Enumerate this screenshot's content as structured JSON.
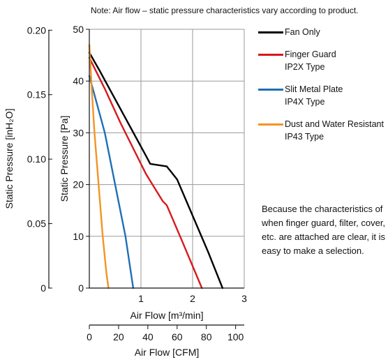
{
  "note": "Note: Air flow – static pressure characteristics vary according to product.",
  "side_note": "Because the characteristics of when finger guard, filter, cover, etc. are attached are clear, it is easy to make a selection.",
  "legend": [
    {
      "line1": "Fan Only",
      "line2": "",
      "color": "#000000"
    },
    {
      "line1": "Finger Guard",
      "line2": "IP2X Type",
      "color": "#d7191c"
    },
    {
      "line1": "Slit Metal Plate",
      "line2": "IP4X Type",
      "color": "#1f6fb5"
    },
    {
      "line1": "Dust and Water Resistant",
      "line2": "IP43 Type",
      "color": "#f39422"
    }
  ],
  "chart_data": {
    "type": "line",
    "xlabel": "Air Flow [m³/min]",
    "x2label": "Air Flow [CFM]",
    "ylabel": "Static Pressure [Pa]",
    "y2label": "Static Pressure [inH₂O]",
    "xlim": [
      0,
      3
    ],
    "ylim": [
      0,
      50
    ],
    "x_ticks": [
      "1",
      "2",
      "3"
    ],
    "y_ticks": [
      "0",
      "10",
      "20",
      "30",
      "40",
      "50"
    ],
    "cfm_ticks": [
      "0",
      "20",
      "40",
      "60",
      "80",
      "100"
    ],
    "cfm_lim": [
      0,
      105.9
    ],
    "inh2o_ticks": [
      "0",
      "0.05",
      "0.10",
      "0.15",
      "0.20"
    ],
    "inh2o_lim": [
      0,
      0.2007
    ],
    "grid": true,
    "legend_position": "right",
    "series": [
      {
        "name": "Fan Only",
        "color": "#000000",
        "x": [
          0,
          0.2,
          0.5,
          0.8,
          1.1,
          1.18,
          1.5,
          1.7,
          2.0,
          2.3,
          2.58
        ],
        "y": [
          45.5,
          42,
          36.5,
          31,
          25.5,
          24,
          23.5,
          21,
          14,
          7,
          0
        ]
      },
      {
        "name": "Finger Guard IP2X Type",
        "color": "#d7191c",
        "x": [
          0,
          0.3,
          0.6,
          0.9,
          1.1,
          1.42,
          1.5,
          1.8,
          2.18
        ],
        "y": [
          44.5,
          38.5,
          32,
          26,
          22,
          16.8,
          16,
          9,
          0
        ]
      },
      {
        "name": "Slit Metal Plate IP4X Type",
        "color": "#1f6fb5",
        "x": [
          0,
          0.15,
          0.3,
          0.5,
          0.7,
          0.85
        ],
        "y": [
          41,
          35.5,
          30,
          20,
          10,
          0
        ]
      },
      {
        "name": "Dust and Water Resistant IP43 Type",
        "color": "#f39422",
        "x": [
          0,
          0.05,
          0.1,
          0.18,
          0.26,
          0.33,
          0.37
        ],
        "y": [
          47,
          38,
          30,
          20,
          10,
          3,
          0
        ]
      }
    ]
  }
}
